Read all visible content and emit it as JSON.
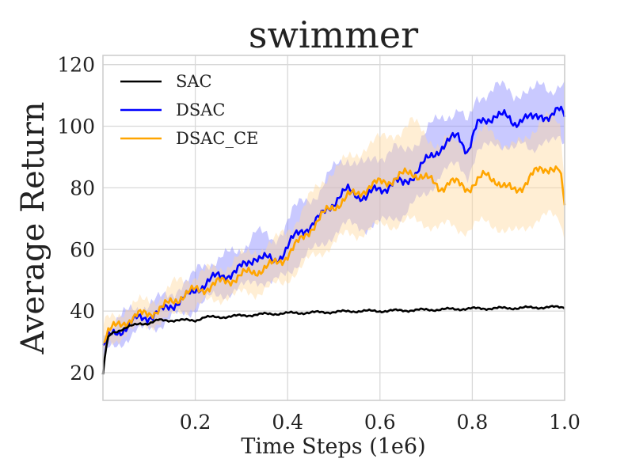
{
  "chart_data": {
    "type": "line",
    "title": "swimmer",
    "xlabel": "Time Steps (1e6)",
    "ylabel": "Average Return",
    "xlim": [
      0.0,
      1.0
    ],
    "ylim": [
      11,
      123
    ],
    "xticks": [
      0.2,
      0.4,
      0.6,
      0.8,
      1.0
    ],
    "xtick_labels": [
      "0.2",
      "0.4",
      "0.6",
      "0.8",
      "1.0"
    ],
    "yticks": [
      20,
      40,
      60,
      80,
      100,
      120
    ],
    "ytick_labels": [
      "20",
      "40",
      "60",
      "80",
      "100",
      "120"
    ],
    "grid": true,
    "legend_position": "top-left",
    "series": [
      {
        "name": "SAC",
        "color": "#000000",
        "x": [
          0.0,
          0.005,
          0.01,
          0.02,
          0.04,
          0.06,
          0.08,
          0.1,
          0.12,
          0.14,
          0.16,
          0.18,
          0.2,
          0.22,
          0.25,
          0.3,
          0.35,
          0.4,
          0.45,
          0.5,
          0.55,
          0.6,
          0.65,
          0.7,
          0.75,
          0.8,
          0.85,
          0.9,
          0.95,
          1.0
        ],
        "y": [
          19,
          26,
          31,
          33,
          34,
          35,
          36,
          36,
          37,
          37,
          37,
          37,
          37,
          38,
          38,
          38.5,
          39,
          39.3,
          39.5,
          39.7,
          40,
          40,
          40.2,
          40.4,
          40.6,
          40.8,
          40.9,
          41,
          41.2,
          41.3
        ]
      },
      {
        "name": "DSAC",
        "color": "#0000ff",
        "band_color": "#8888ff",
        "x": [
          0.0,
          0.01,
          0.03,
          0.05,
          0.07,
          0.09,
          0.11,
          0.13,
          0.15,
          0.17,
          0.19,
          0.21,
          0.23,
          0.25,
          0.27,
          0.29,
          0.31,
          0.33,
          0.35,
          0.37,
          0.39,
          0.41,
          0.43,
          0.45,
          0.47,
          0.49,
          0.51,
          0.53,
          0.55,
          0.57,
          0.59,
          0.61,
          0.63,
          0.65,
          0.67,
          0.69,
          0.71,
          0.73,
          0.75,
          0.77,
          0.79,
          0.81,
          0.83,
          0.85,
          0.87,
          0.89,
          0.91,
          0.93,
          0.95,
          0.97,
          0.99,
          1.0
        ],
        "y": [
          28,
          31,
          33,
          35,
          37,
          38,
          39,
          40,
          42,
          44,
          45,
          48,
          50,
          51,
          52,
          53,
          55,
          58,
          57,
          56,
          59,
          63,
          66,
          68,
          70,
          74,
          77,
          79,
          78,
          77,
          79,
          80,
          82,
          81,
          84,
          87,
          90,
          93,
          95,
          97,
          92,
          100,
          102,
          104,
          103,
          101,
          103,
          102,
          104,
          103,
          105,
          104
        ],
        "band_lower": [
          24,
          27,
          29,
          31,
          33,
          34,
          35,
          36,
          38,
          39,
          40,
          42,
          44,
          45,
          46,
          47,
          48,
          50,
          50,
          49,
          51,
          54,
          57,
          59,
          61,
          64,
          66,
          68,
          68,
          67,
          68,
          69,
          71,
          71,
          74,
          77,
          80,
          84,
          86,
          88,
          84,
          91,
          93,
          95,
          94,
          92,
          94,
          93,
          95,
          94,
          96,
          95
        ],
        "band_upper": [
          32,
          35,
          37,
          39,
          41,
          42,
          43,
          44,
          46,
          49,
          50,
          54,
          56,
          57,
          58,
          59,
          62,
          66,
          64,
          63,
          67,
          72,
          75,
          77,
          79,
          84,
          88,
          90,
          88,
          87,
          90,
          91,
          93,
          91,
          94,
          97,
          100,
          102,
          104,
          106,
          100,
          109,
          111,
          113,
          112,
          110,
          112,
          111,
          113,
          112,
          114,
          113
        ]
      },
      {
        "name": "DSAC_CE",
        "color": "#ffa500",
        "band_color": "#ffd9a0",
        "x": [
          0.0,
          0.01,
          0.03,
          0.05,
          0.07,
          0.09,
          0.11,
          0.13,
          0.15,
          0.17,
          0.19,
          0.21,
          0.23,
          0.25,
          0.27,
          0.29,
          0.31,
          0.33,
          0.35,
          0.37,
          0.39,
          0.41,
          0.43,
          0.45,
          0.47,
          0.49,
          0.51,
          0.53,
          0.55,
          0.57,
          0.59,
          0.61,
          0.63,
          0.65,
          0.67,
          0.69,
          0.71,
          0.73,
          0.75,
          0.77,
          0.79,
          0.81,
          0.83,
          0.85,
          0.87,
          0.89,
          0.91,
          0.93,
          0.95,
          0.97,
          0.99,
          1.0
        ],
        "y": [
          30,
          33,
          35,
          37,
          38,
          39,
          40,
          41,
          43,
          45,
          46,
          47,
          48,
          49,
          50,
          51,
          52,
          53,
          54,
          55,
          57,
          60,
          63,
          67,
          70,
          73,
          75,
          77,
          78,
          80,
          81,
          82,
          83,
          84,
          85,
          84,
          82,
          80,
          82,
          81,
          80,
          82,
          84,
          83,
          80,
          79,
          81,
          84,
          86,
          87,
          85,
          74
        ],
        "band_lower": [
          26,
          29,
          31,
          33,
          34,
          35,
          36,
          37,
          38,
          40,
          41,
          42,
          43,
          44,
          45,
          45,
          46,
          46,
          47,
          48,
          49,
          52,
          54,
          57,
          59,
          61,
          63,
          65,
          65,
          66,
          67,
          68,
          68,
          69,
          69,
          69,
          68,
          67,
          68,
          67,
          66,
          68,
          69,
          68,
          66,
          65,
          67,
          69,
          70,
          71,
          70,
          64
        ],
        "band_upper": [
          34,
          37,
          39,
          41,
          42,
          43,
          44,
          45,
          48,
          50,
          51,
          52,
          53,
          54,
          55,
          57,
          58,
          60,
          61,
          62,
          65,
          68,
          72,
          77,
          81,
          85,
          87,
          89,
          91,
          94,
          95,
          96,
          98,
          99,
          101,
          99,
          96,
          93,
          96,
          95,
          94,
          96,
          99,
          98,
          94,
          93,
          95,
          99,
          102,
          103,
          100,
          84
        ]
      }
    ]
  }
}
